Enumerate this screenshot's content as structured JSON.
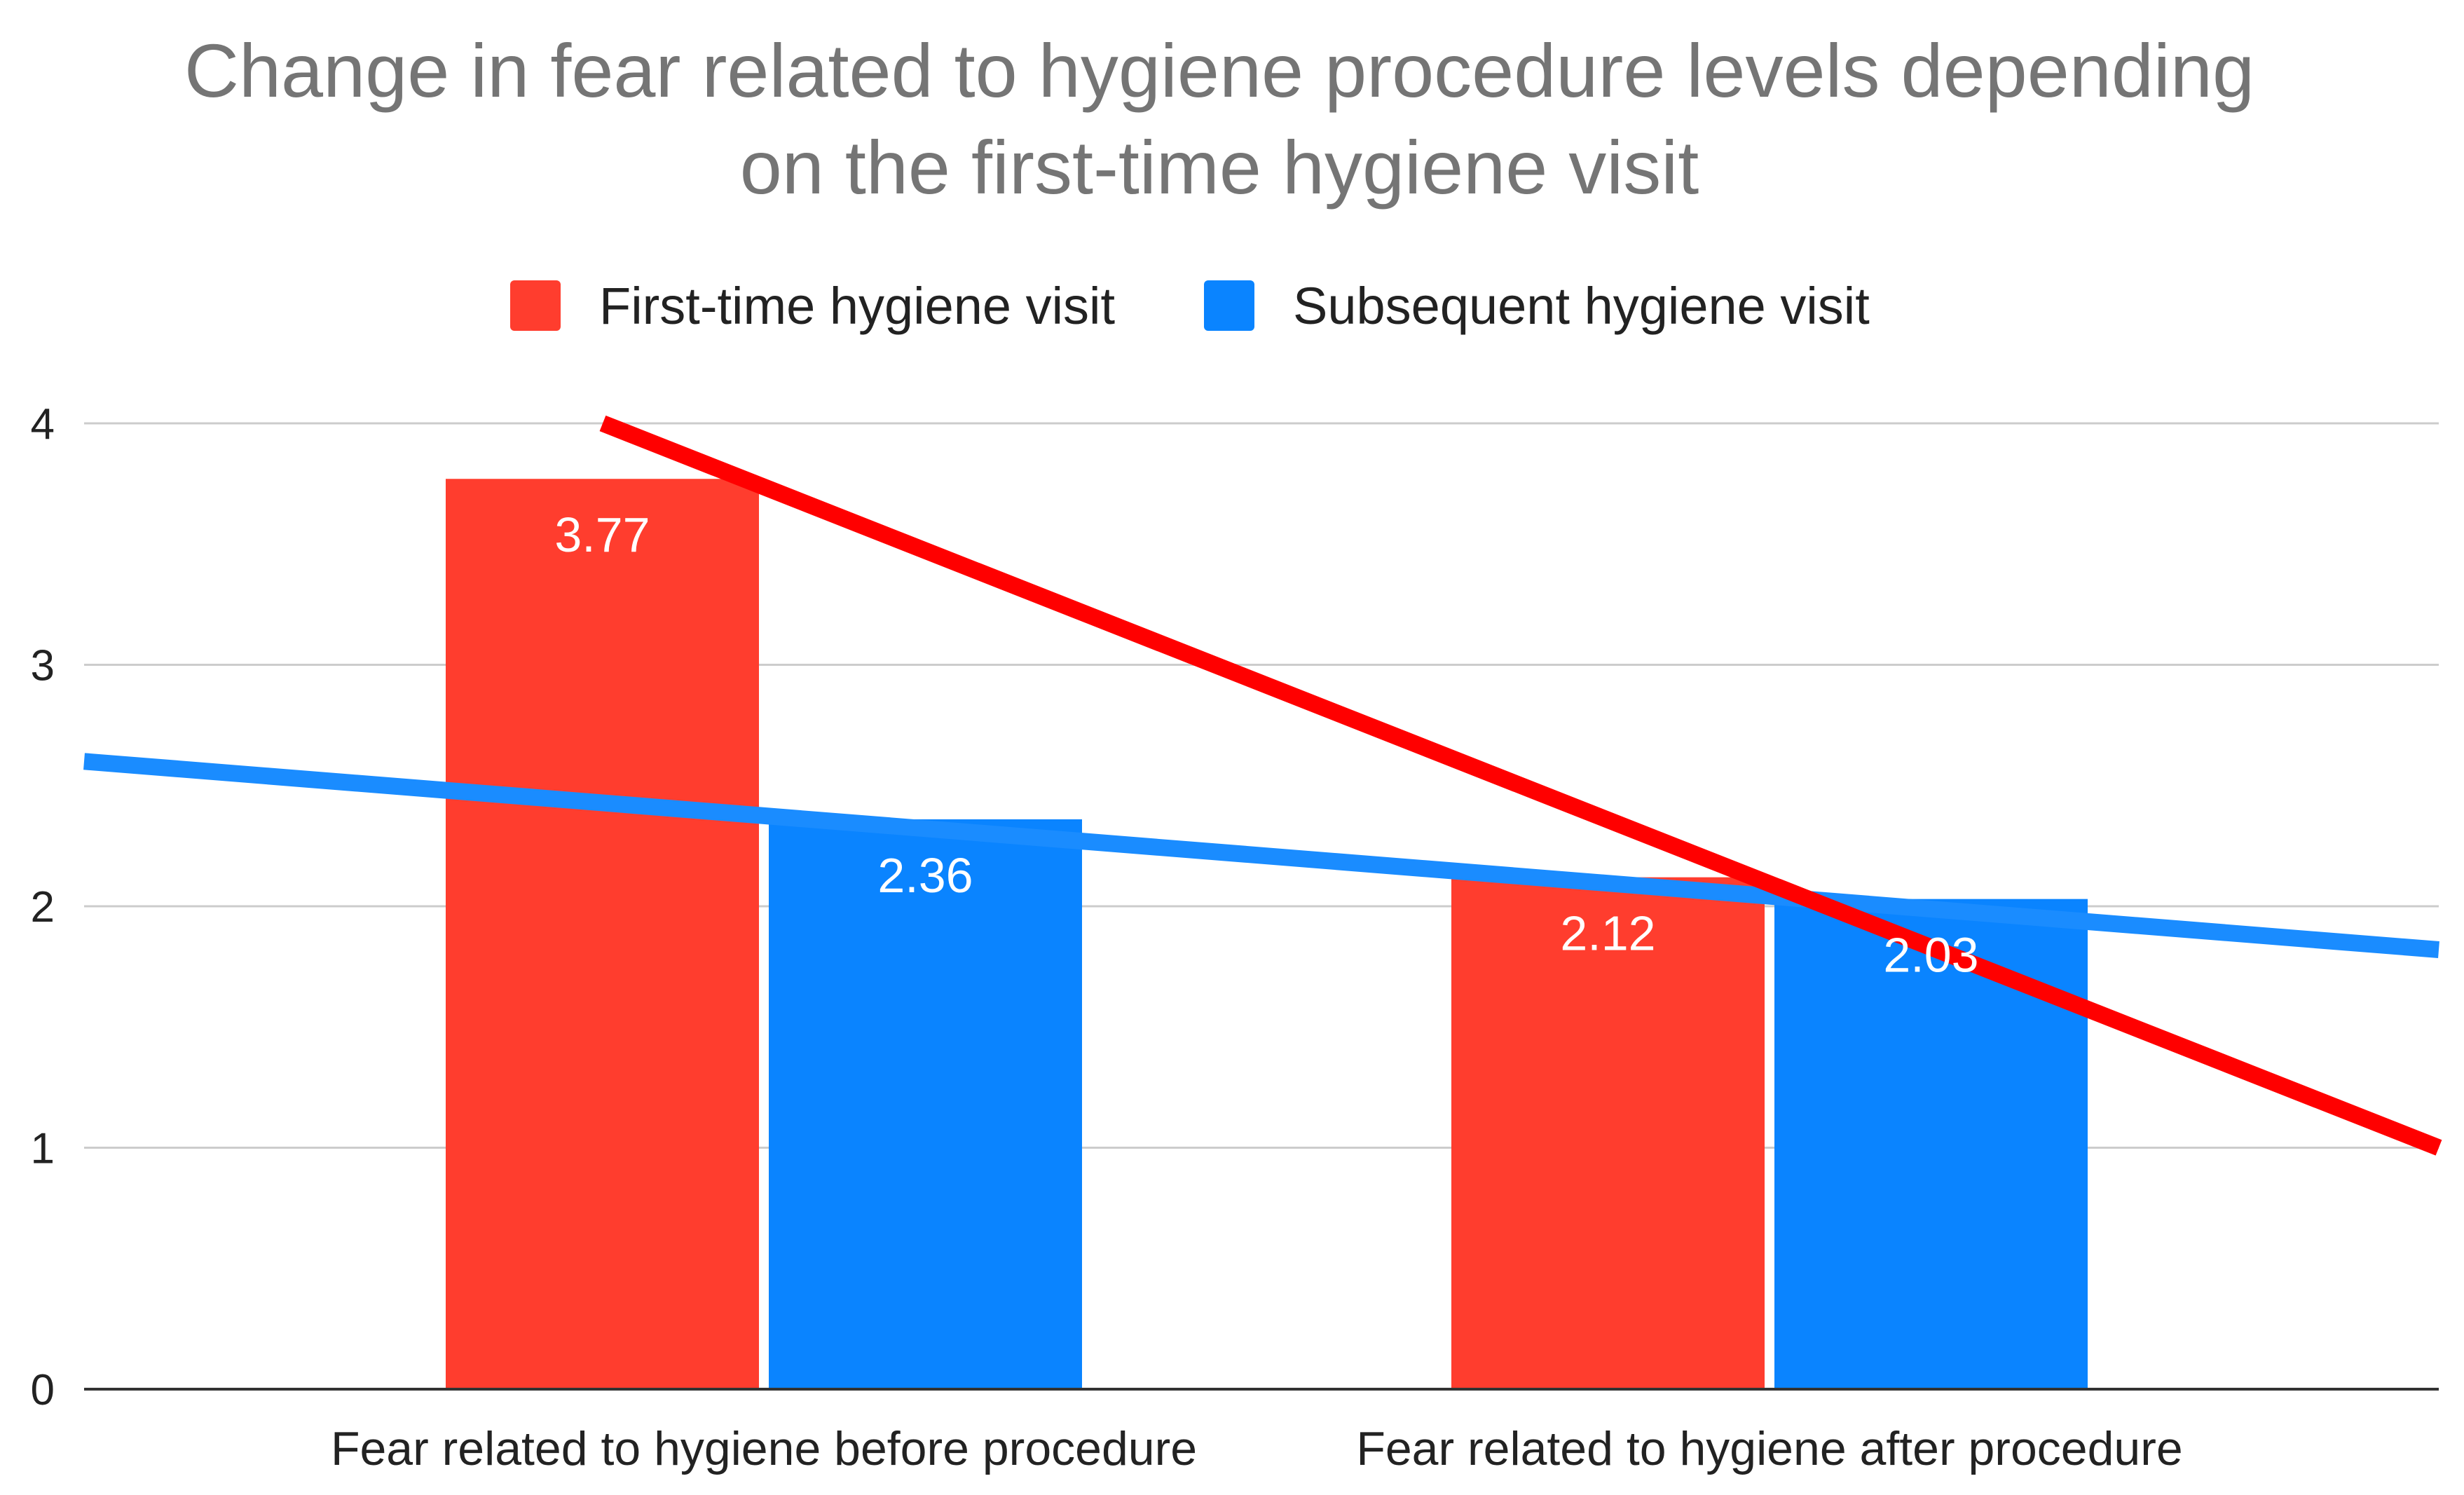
{
  "chart_data": {
    "type": "bar",
    "title_lines": [
      "Change in fear related to hygiene procedure levels depending",
      "on the first-time hygiene visit"
    ],
    "categories": [
      "Fear related to hygiene before procedure",
      "Fear related to hygiene after procedure"
    ],
    "series": [
      {
        "name": "First-time hygiene visit",
        "color": "#ff3d2e",
        "values": [
          3.77,
          2.12
        ],
        "labels": [
          "3.77",
          "2.12"
        ],
        "trendline": {
          "color": "#ff0000",
          "start_value": 4.0,
          "end_value": 1.0
        }
      },
      {
        "name": "Subsequent hygiene visit",
        "color": "#0a84ff",
        "values": [
          2.36,
          2.03
        ],
        "labels": [
          "2.36",
          "2.03"
        ],
        "trendline": {
          "color": "#1a8cff",
          "start_value": 2.6,
          "end_value": 1.82
        }
      }
    ],
    "yticks": [
      "0",
      "1",
      "2",
      "3",
      "4"
    ],
    "ylim": [
      0,
      4
    ],
    "xlabel": "",
    "ylabel": "",
    "grid": true,
    "legend_position": "top-center"
  }
}
